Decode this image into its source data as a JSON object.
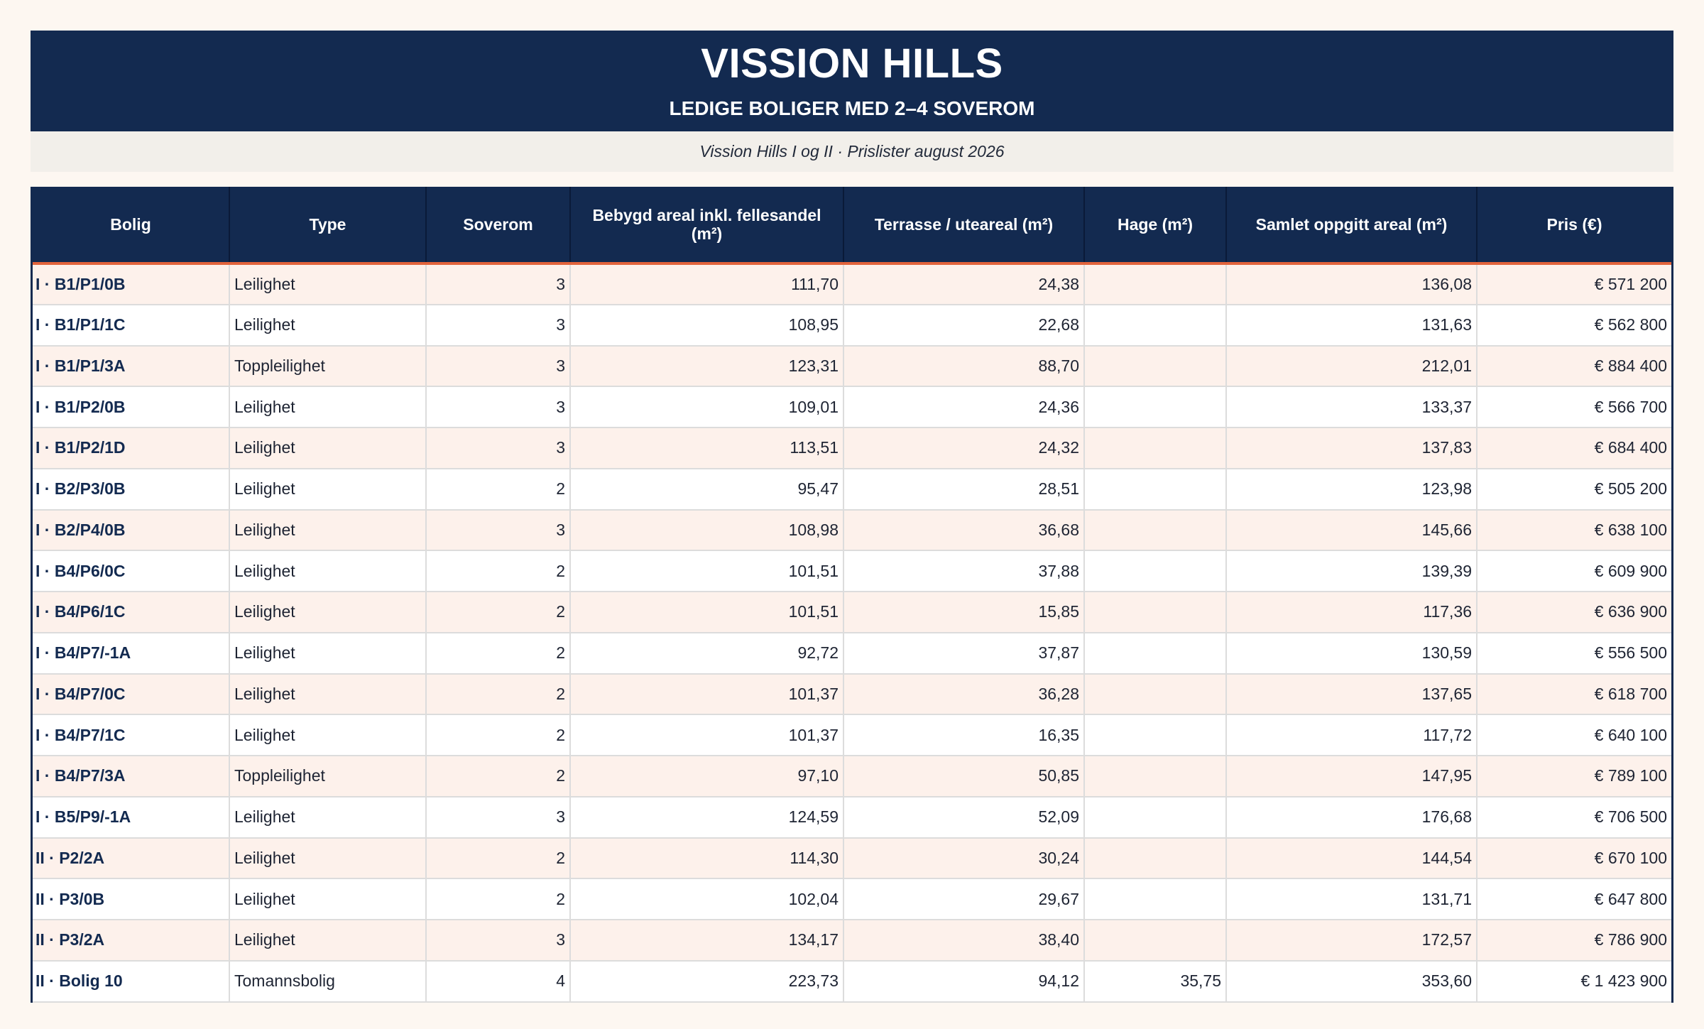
{
  "header": {
    "title": "VISSION HILLS",
    "subtitle": "LEDIGE BOLIGER MED 2–4 SOVEROM",
    "note": "Vission Hills I og II · Prislister august 2026"
  },
  "table": {
    "columns": [
      "Bolig",
      "Type",
      "Soverom",
      "Bebygd areal inkl. fellesandel (m²)",
      "Terrasse / uteareal (m²)",
      "Hage (m²)",
      "Samlet oppgitt areal (m²)",
      "Pris (€)"
    ],
    "rows": [
      [
        "I · B1/P1/0B",
        "Leilighet",
        "3",
        "111,70",
        "24,38",
        "",
        "136,08",
        "€ 571 200"
      ],
      [
        "I · B1/P1/1C",
        "Leilighet",
        "3",
        "108,95",
        "22,68",
        "",
        "131,63",
        "€ 562 800"
      ],
      [
        "I · B1/P1/3A",
        "Toppleilighet",
        "3",
        "123,31",
        "88,70",
        "",
        "212,01",
        "€ 884 400"
      ],
      [
        "I · B1/P2/0B",
        "Leilighet",
        "3",
        "109,01",
        "24,36",
        "",
        "133,37",
        "€ 566 700"
      ],
      [
        "I · B1/P2/1D",
        "Leilighet",
        "3",
        "113,51",
        "24,32",
        "",
        "137,83",
        "€ 684 400"
      ],
      [
        "I · B2/P3/0B",
        "Leilighet",
        "2",
        "95,47",
        "28,51",
        "",
        "123,98",
        "€ 505 200"
      ],
      [
        "I · B2/P4/0B",
        "Leilighet",
        "3",
        "108,98",
        "36,68",
        "",
        "145,66",
        "€ 638 100"
      ],
      [
        "I · B4/P6/0C",
        "Leilighet",
        "2",
        "101,51",
        "37,88",
        "",
        "139,39",
        "€ 609 900"
      ],
      [
        "I · B4/P6/1C",
        "Leilighet",
        "2",
        "101,51",
        "15,85",
        "",
        "117,36",
        "€ 636 900"
      ],
      [
        "I · B4/P7/-1A",
        "Leilighet",
        "2",
        "92,72",
        "37,87",
        "",
        "130,59",
        "€ 556 500"
      ],
      [
        "I · B4/P7/0C",
        "Leilighet",
        "2",
        "101,37",
        "36,28",
        "",
        "137,65",
        "€ 618 700"
      ],
      [
        "I · B4/P7/1C",
        "Leilighet",
        "2",
        "101,37",
        "16,35",
        "",
        "117,72",
        "€ 640 100"
      ],
      [
        "I · B4/P7/3A",
        "Toppleilighet",
        "2",
        "97,10",
        "50,85",
        "",
        "147,95",
        "€ 789 100"
      ],
      [
        "I · B5/P9/-1A",
        "Leilighet",
        "3",
        "124,59",
        "52,09",
        "",
        "176,68",
        "€ 706 500"
      ],
      [
        "II · P2/2A",
        "Leilighet",
        "2",
        "114,30",
        "30,24",
        "",
        "144,54",
        "€ 670 100"
      ],
      [
        "II · P3/0B",
        "Leilighet",
        "2",
        "102,04",
        "29,67",
        "",
        "131,71",
        "€ 647 800"
      ],
      [
        "II · P3/2A",
        "Leilighet",
        "3",
        "134,17",
        "38,40",
        "",
        "172,57",
        "€ 786 900"
      ],
      [
        "II · Bolig 10",
        "Tomannsbolig",
        "4",
        "223,73",
        "94,12",
        "35,75",
        "353,60",
        "€ 1 423 900"
      ]
    ]
  }
}
